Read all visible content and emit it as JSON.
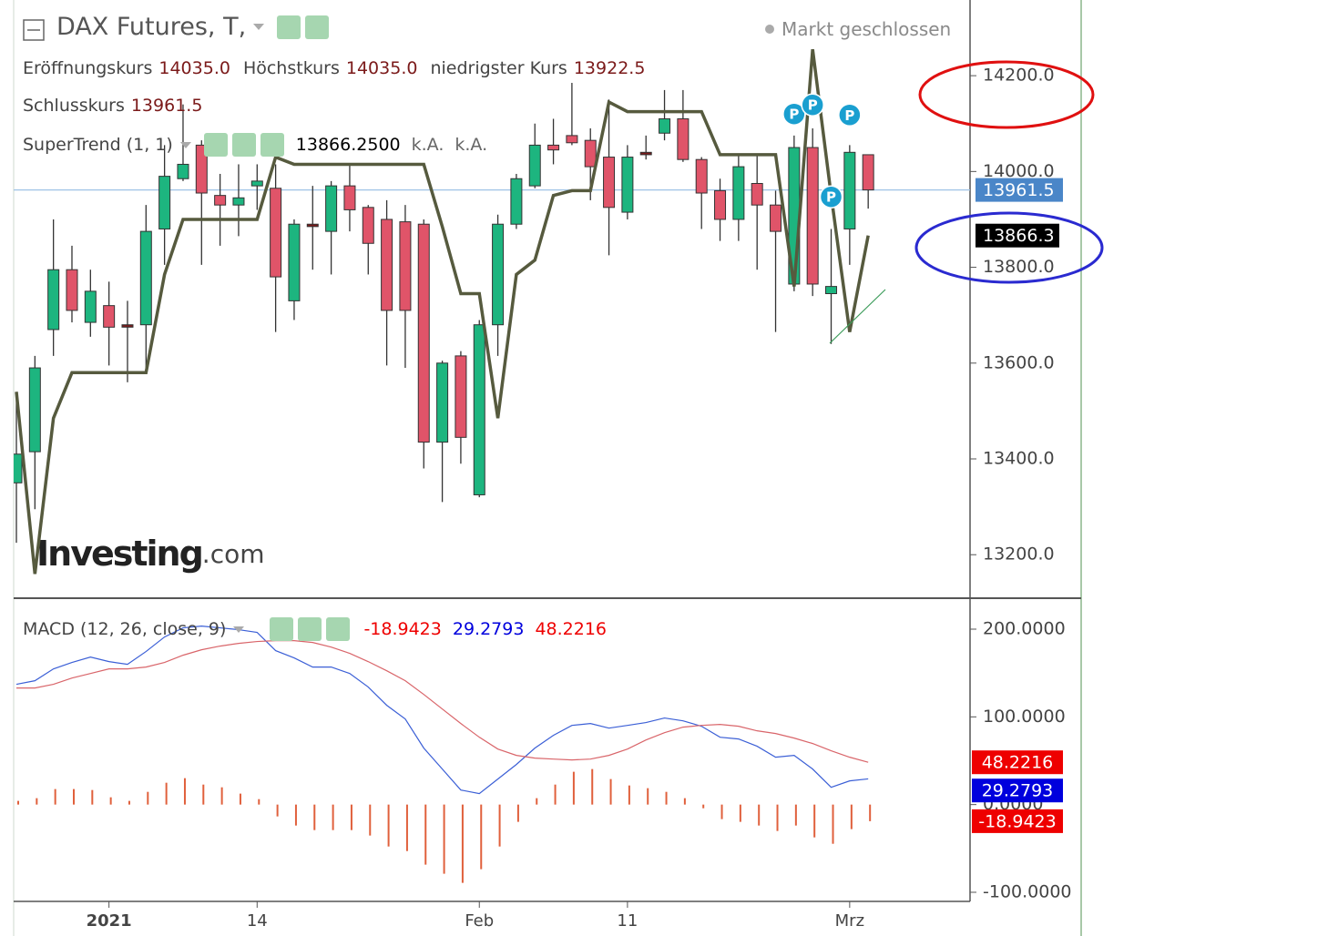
{
  "chart_data": [
    {
      "type": "candlestick",
      "title": "DAX Futures, T,",
      "status": "Markt geschlossen",
      "legend": {
        "open_label": "Eröffnungskurs",
        "open": "14035.0",
        "high_label": "Höchstkurs",
        "high": "14035.0",
        "low_label": "niedrigster Kurs",
        "low": "13922.5",
        "close_label": "Schlusskurs",
        "close": "13961.5"
      },
      "categories": [
        null,
        null,
        null,
        null,
        null,
        "2021",
        null,
        null,
        null,
        null,
        null,
        null,
        null,
        "14",
        null,
        null,
        null,
        null,
        null,
        null,
        null,
        null,
        null,
        null,
        null,
        "Feb",
        null,
        null,
        null,
        null,
        null,
        null,
        null,
        "11",
        null,
        null,
        null,
        null,
        null,
        null,
        null,
        null,
        null,
        null,
        null,
        "Mrz",
        null
      ],
      "open": [
        13350,
        13415,
        13670,
        13795,
        13685,
        13720,
        13680,
        13680,
        13880,
        13985,
        14055,
        13950,
        13930,
        13970,
        13965,
        13730,
        13890,
        13875,
        13970,
        13925,
        13900,
        13895,
        13890,
        13435,
        13615,
        13325,
        13680,
        13890,
        13970,
        14055,
        14075,
        14065,
        14030,
        13915,
        14040,
        14080,
        14110,
        14025,
        13960,
        13900,
        13975,
        13930,
        13765,
        14050,
        13745,
        13880,
        14035
      ],
      "high": [
        13540,
        13615,
        13900,
        13845,
        13795,
        13770,
        13730,
        13930,
        14055,
        14140,
        14065,
        13995,
        14015,
        14015,
        14015,
        13900,
        13970,
        13980,
        14015,
        13930,
        13940,
        13930,
        13900,
        13605,
        13625,
        13690,
        13910,
        13995,
        14100,
        14110,
        14185,
        14090,
        14150,
        14055,
        14075,
        14170,
        14170,
        14030,
        13985,
        14035,
        14035,
        13960,
        14075,
        14090,
        13880,
        14055,
        14035
      ],
      "low": [
        13225,
        13295,
        13615,
        13685,
        13655,
        13595,
        13560,
        13590,
        13805,
        13980,
        13805,
        13845,
        13865,
        13920,
        13665,
        13690,
        13795,
        13785,
        13875,
        13785,
        13595,
        13590,
        13380,
        13310,
        13390,
        13320,
        13615,
        13880,
        13965,
        14015,
        14055,
        13940,
        13825,
        13900,
        14025,
        14065,
        14020,
        13880,
        13855,
        13855,
        13795,
        13665,
        13750,
        13740,
        13640,
        13805,
        13922.5
      ],
      "close": [
        13410,
        13590,
        13795,
        13710,
        13750,
        13675,
        13675,
        13875,
        13990,
        14015,
        13955,
        13930,
        13945,
        13980,
        13780,
        13890,
        13885,
        13970,
        13920,
        13850,
        13710,
        13710,
        13435,
        13600,
        13445,
        13680,
        13890,
        13985,
        14055,
        14045,
        14060,
        14010,
        13925,
        14030,
        14035,
        14110,
        14025,
        13955,
        13900,
        14010,
        13930,
        13875,
        14050,
        13765,
        13760,
        14040,
        13961.5
      ],
      "up_color": "#1db57f",
      "down_color": "#e05469",
      "ylim": [
        13113,
        14358
      ],
      "yticks": [
        {
          "value": 13200,
          "label": "13200.0"
        },
        {
          "value": 13400,
          "label": "13400.0"
        },
        {
          "value": 13600,
          "label": "13600.0"
        },
        {
          "value": 13800,
          "label": "13800.0"
        },
        {
          "value": 14000,
          "label": "14000.0"
        },
        {
          "value": 14200,
          "label": "14200.0"
        }
      ],
      "overlay": {
        "name": "SuperTrend (1, 1)",
        "color": "#565a3e",
        "values": [
          13540,
          13160,
          13485,
          13580,
          13580,
          13580,
          13580,
          13580,
          13785,
          13900,
          13900,
          13900,
          13900,
          13900,
          14030,
          14015,
          14015,
          14015,
          14015,
          14015,
          14015,
          14015,
          14015,
          13885,
          13745,
          13745,
          13485,
          13785,
          13815,
          13950,
          13960,
          13960,
          14145,
          14125,
          14125,
          14125,
          14125,
          14125,
          14035,
          14035,
          14035,
          14035,
          13760,
          14255,
          13950,
          13665,
          13866.25
        ],
        "value_label": "13866.2500",
        "notes": [
          "k.A.",
          "k.A."
        ]
      },
      "price_markers": [
        {
          "value": 13961.5,
          "label": "13961.5",
          "color": "#4a86c8"
        },
        {
          "value": 13866.25,
          "label": "13866.3",
          "color": "#000000"
        }
      ],
      "pivots": [
        {
          "index": 42,
          "value": 14120,
          "label": "P"
        },
        {
          "index": 43,
          "value": 14139,
          "label": "P"
        },
        {
          "index": 45,
          "value": 14118,
          "label": "P"
        },
        {
          "index": 44,
          "value": 13947,
          "label": "P"
        }
      ],
      "watermark": [
        "Investing",
        ".com"
      ]
    },
    {
      "type": "macd",
      "title": "MACD (12, 26, close, 9)",
      "ylim": [
        -110.4,
        235.3
      ],
      "yticks": [
        {
          "value": -100,
          "label": "-100.0000"
        },
        {
          "value": 0,
          "label": "0.0000"
        },
        {
          "value": 100,
          "label": "100.0000"
        },
        {
          "value": 200,
          "label": "200.0000"
        }
      ],
      "series": [
        {
          "style": "histogram",
          "color": "#e0603c",
          "label_color": "#ee0000",
          "value_label": "-18.9423",
          "values": [
            4.2,
            7.3,
            17.7,
            17.7,
            16.6,
            8.3,
            4.2,
            14.5,
            24.9,
            30.1,
            22.8,
            19.7,
            12.5,
            6.2,
            -13.5,
            -23.9,
            -29.1,
            -29.1,
            -29.1,
            -35.3,
            -47.8,
            -53.0,
            -68.5,
            -78.9,
            -89.3,
            -73.7,
            -47.8,
            -19.7,
            7.3,
            22.8,
            37.4,
            40.5,
            29.1,
            21.8,
            18.7,
            14.5,
            7.3,
            -4.2,
            -16.6,
            -19.7,
            -23.9,
            -30.1,
            -23.9,
            -37.4,
            -44.7,
            -28.0,
            -18.9423
          ]
        },
        {
          "style": "line",
          "color": "#3b5fd6",
          "label_color": "#0000dd",
          "value_label": "29.2793",
          "values": [
            137.1,
            141.2,
            154.7,
            162.0,
            168.2,
            163.0,
            159.9,
            174.5,
            191.1,
            201.5,
            203.5,
            201.5,
            199.4,
            196.3,
            175.5,
            167.2,
            156.8,
            156.8,
            149.5,
            134.0,
            113.2,
            97.6,
            64.4,
            40.5,
            16.6,
            12.5,
            29.1,
            45.7,
            64.4,
            78.9,
            90.3,
            92.4,
            87.2,
            90.3,
            93.5,
            98.7,
            95.5,
            89.3,
            76.8,
            74.8,
            66.5,
            54.0,
            56.1,
            40.5,
            19.7,
            27.0,
            29.2793
          ]
        },
        {
          "style": "line",
          "color": "#d9656a",
          "label_color": "#ee0000",
          "value_label": "48.2216",
          "values": [
            132.9,
            132.9,
            137.1,
            144.3,
            149.5,
            154.7,
            154.7,
            156.8,
            162.0,
            170.3,
            176.5,
            180.7,
            183.8,
            185.9,
            186.9,
            186.9,
            184.8,
            179.6,
            172.4,
            163.0,
            152.6,
            141.2,
            125.6,
            109.0,
            92.4,
            76.8,
            63.3,
            56.1,
            53.0,
            51.9,
            50.9,
            51.9,
            56.1,
            63.3,
            73.7,
            82.0,
            88.3,
            90.3,
            91.4,
            89.3,
            84.1,
            81.0,
            75.8,
            69.6,
            61.3,
            54.0,
            48.2216
          ]
        }
      ]
    }
  ]
}
